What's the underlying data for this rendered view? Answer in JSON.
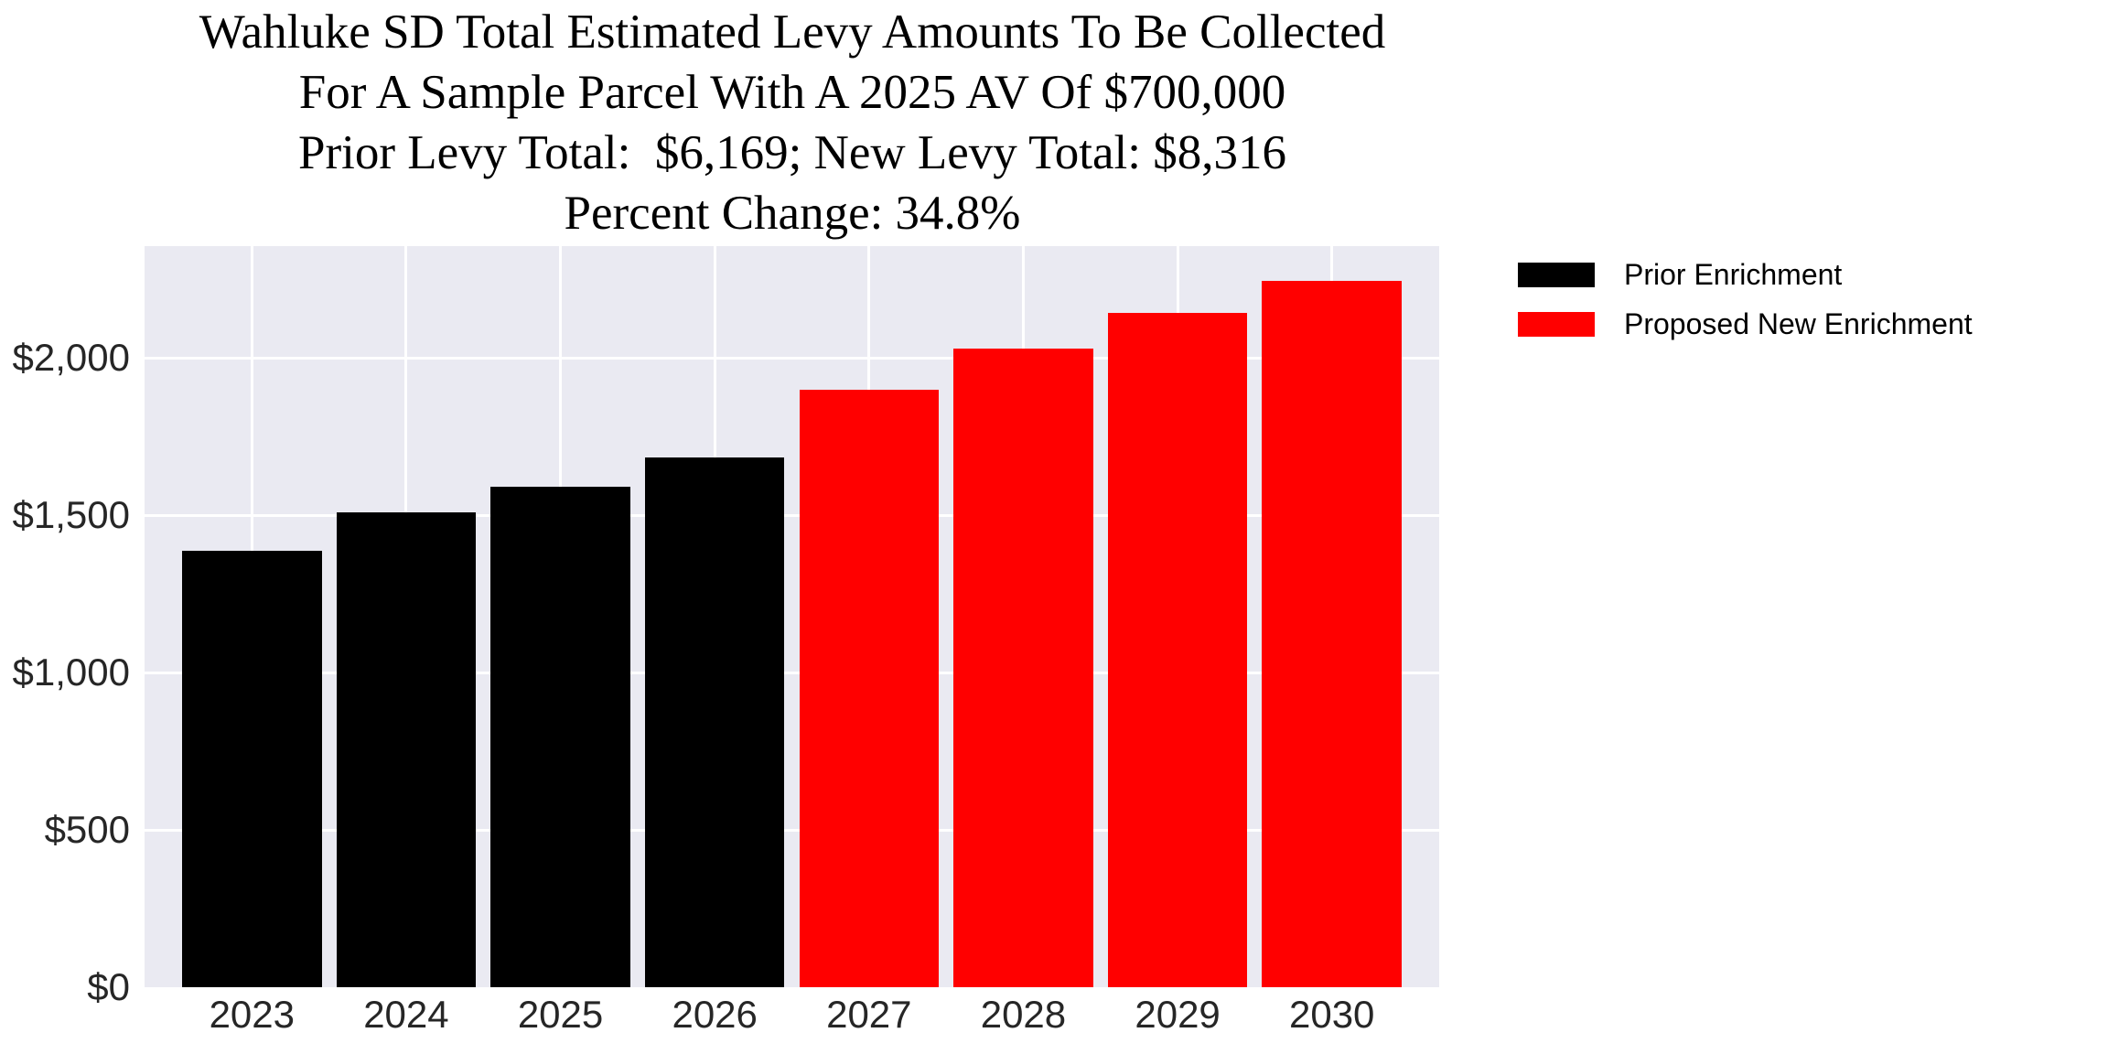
{
  "chart_data": {
    "type": "bar",
    "title_lines": [
      "Wahluke SD Total Estimated Levy Amounts To Be Collected",
      "For A Sample Parcel With A 2025 AV Of $700,000",
      "Prior Levy Total:  $6,169; New Levy Total: $8,316",
      "Percent Change: 34.8%"
    ],
    "categories": [
      "2023",
      "2024",
      "2025",
      "2026",
      "2027",
      "2028",
      "2029",
      "2030"
    ],
    "series": [
      {
        "name": "Prior Enrichment",
        "color": "#000000",
        "categories": [
          "2023",
          "2024",
          "2025",
          "2026"
        ],
        "values": [
          1386,
          1510,
          1589,
          1684
        ]
      },
      {
        "name": "Proposed New Enrichment",
        "color": "#ff0000",
        "categories": [
          "2027",
          "2028",
          "2029",
          "2030"
        ],
        "values": [
          1900,
          2028,
          2142,
          2246
        ]
      }
    ],
    "xlabel": "",
    "ylabel": "",
    "y_tick_labels": [
      "$0",
      "$500",
      "$1,000",
      "$1,500",
      "$2,000"
    ],
    "y_tick_values": [
      0,
      500,
      1000,
      1500,
      2000
    ],
    "ylim": [
      0,
      2355
    ],
    "grid": true,
    "legend_position": "upper-right-outside",
    "totals": {
      "prior_levy_total": "$6,169",
      "new_levy_total": "$8,316",
      "percent_change": "34.8%",
      "sample_parcel_av": "$700,000"
    },
    "colors": {
      "plot_background": "#eaeaf2",
      "gridline": "#ffffff",
      "tick_text": "#262626",
      "title_text": "#000000"
    }
  }
}
